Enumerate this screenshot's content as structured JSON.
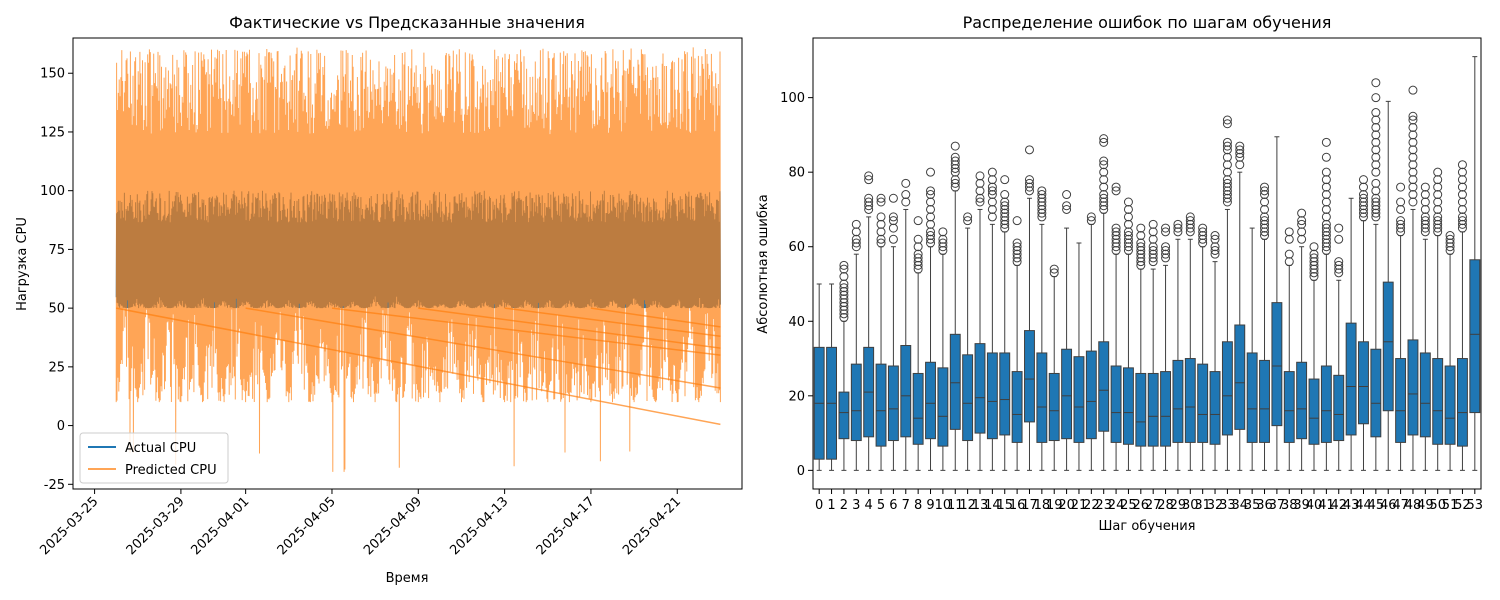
{
  "chart_data": [
    {
      "type": "line",
      "title": "Фактические vs Предсказанные значения",
      "xlabel": "Время",
      "ylabel": "Нагрузка CPU",
      "xlim": [
        "2025-03-24",
        "2025-04-24"
      ],
      "ylim": [
        -27,
        165
      ],
      "xticks": [
        "2025-03-25",
        "2025-03-29",
        "2025-04-01",
        "2025-04-05",
        "2025-04-09",
        "2025-04-13",
        "2025-04-17",
        "2025-04-21"
      ],
      "yticks": [
        -25,
        0,
        25,
        50,
        75,
        100,
        125,
        150
      ],
      "x_range": [
        "2025-03-26",
        "2025-04-23"
      ],
      "legend": "bottom-left",
      "series": [
        {
          "name": "Actual CPU",
          "color": "#1f77b4",
          "min": 50,
          "max": 100,
          "typical_low": 55,
          "typical_high": 100
        },
        {
          "name": "Predicted CPU",
          "color": "#ff7f0e",
          "opacity": 0.7,
          "min": -20,
          "max": 161,
          "typical_low": 10,
          "typical_high": 160
        }
      ]
    },
    {
      "type": "box",
      "title": "Распределение ошибок по шагам обучения",
      "xlabel": "Шаг обучения",
      "ylabel": "Абсолютная ошибка",
      "ylim": [
        -5,
        116
      ],
      "yticks": [
        0,
        20,
        40,
        60,
        80,
        100
      ],
      "color": "#1f77b4",
      "categories": [
        "0",
        "1",
        "2",
        "3",
        "4",
        "5",
        "6",
        "7",
        "8",
        "9",
        "10",
        "11",
        "12",
        "13",
        "14",
        "15",
        "16",
        "17",
        "18",
        "19",
        "20",
        "21",
        "22",
        "23",
        "24",
        "25",
        "26",
        "27",
        "28",
        "29",
        "30",
        "31",
        "32",
        "33",
        "34",
        "35",
        "36",
        "37",
        "38",
        "39",
        "40",
        "41",
        "42",
        "43",
        "44",
        "45",
        "46",
        "47",
        "48",
        "49",
        "50",
        "51",
        "52",
        "53"
      ],
      "boxes": [
        {
          "q1": 3,
          "median": 18,
          "q3": 33,
          "whisker_low": 0,
          "whisker_high": 50,
          "outliers": []
        },
        {
          "q1": 3,
          "median": 18,
          "q3": 33,
          "whisker_low": 0,
          "whisker_high": 50,
          "outliers": []
        },
        {
          "q1": 8.5,
          "median": 15.5,
          "q3": 21,
          "whisker_low": 0,
          "whisker_high": 40,
          "outliers": [
            41,
            42,
            43,
            44,
            45,
            46,
            47,
            48,
            49,
            50,
            52,
            54,
            55
          ]
        },
        {
          "q1": 8,
          "median": 16,
          "q3": 28.5,
          "whisker_low": 0,
          "whisker_high": 58,
          "outliers": [
            60,
            61,
            62,
            64,
            66
          ]
        },
        {
          "q1": 9,
          "median": 21,
          "q3": 33,
          "whisker_low": 0,
          "whisker_high": 68,
          "outliers": [
            70,
            71,
            72,
            73,
            78,
            79
          ]
        },
        {
          "q1": 6.5,
          "median": 16,
          "q3": 28.5,
          "whisker_low": 0,
          "whisker_high": 60,
          "outliers": [
            61,
            62,
            64,
            66,
            68,
            72,
            73
          ]
        },
        {
          "q1": 8,
          "median": 16.5,
          "q3": 28,
          "whisker_low": 0,
          "whisker_high": 60,
          "outliers": [
            62,
            65,
            67,
            68,
            73
          ]
        },
        {
          "q1": 9,
          "median": 20,
          "q3": 33.5,
          "whisker_low": 0,
          "whisker_high": 70,
          "outliers": [
            72,
            74,
            77
          ]
        },
        {
          "q1": 7,
          "median": 14,
          "q3": 26,
          "whisker_low": 0,
          "whisker_high": 53,
          "outliers": [
            54,
            55,
            56,
            57,
            58,
            60,
            62,
            67
          ]
        },
        {
          "q1": 8.5,
          "median": 18,
          "q3": 29,
          "whisker_low": 0,
          "whisker_high": 60,
          "outliers": [
            61,
            62,
            63,
            64,
            66,
            68,
            70,
            72,
            74,
            75,
            80
          ]
        },
        {
          "q1": 6.5,
          "median": 14.5,
          "q3": 27.5,
          "whisker_low": 0,
          "whisker_high": 58,
          "outliers": [
            59,
            60,
            61,
            62,
            64
          ]
        },
        {
          "q1": 11,
          "median": 23.5,
          "q3": 36.5,
          "whisker_low": 0,
          "whisker_high": 75,
          "outliers": [
            76,
            77,
            78,
            80,
            81,
            82,
            83,
            84,
            87
          ]
        },
        {
          "q1": 8,
          "median": 18,
          "q3": 31,
          "whisker_low": 0,
          "whisker_high": 65,
          "outliers": [
            67,
            68
          ]
        },
        {
          "q1": 10,
          "median": 19.5,
          "q3": 34,
          "whisker_low": 0,
          "whisker_high": 70,
          "outliers": [
            72,
            73,
            75,
            77,
            79
          ]
        },
        {
          "q1": 8.5,
          "median": 18.5,
          "q3": 31.5,
          "whisker_low": 0,
          "whisker_high": 66,
          "outliers": [
            68,
            70,
            72,
            74,
            75,
            76,
            78,
            80
          ]
        },
        {
          "q1": 9.5,
          "median": 19,
          "q3": 31.5,
          "whisker_low": 0,
          "whisker_high": 64,
          "outliers": [
            65,
            66,
            67,
            68,
            69,
            70,
            71,
            72,
            74,
            78
          ]
        },
        {
          "q1": 7.5,
          "median": 15,
          "q3": 26.5,
          "whisker_low": 0,
          "whisker_high": 55,
          "outliers": [
            56,
            57,
            58,
            59,
            60,
            61,
            67
          ]
        },
        {
          "q1": 13,
          "median": 24.5,
          "q3": 37.5,
          "whisker_low": 0,
          "whisker_high": 73,
          "outliers": [
            75,
            76,
            77,
            78,
            86
          ]
        },
        {
          "q1": 7.5,
          "median": 17,
          "q3": 31.5,
          "whisker_low": 0,
          "whisker_high": 66,
          "outliers": [
            68,
            69,
            70,
            71,
            72,
            73,
            74,
            75
          ]
        },
        {
          "q1": 8,
          "median": 16,
          "q3": 26,
          "whisker_low": 0,
          "whisker_high": 52,
          "outliers": [
            53,
            54
          ]
        },
        {
          "q1": 8.5,
          "median": 20,
          "q3": 32.5,
          "whisker_low": 0,
          "whisker_high": 65,
          "outliers": [
            70,
            71,
            74
          ]
        },
        {
          "q1": 7.5,
          "median": 17,
          "q3": 30.5,
          "whisker_low": 0,
          "whisker_high": 61,
          "outliers": []
        },
        {
          "q1": 8.5,
          "median": 18.5,
          "q3": 32,
          "whisker_low": 0,
          "whisker_high": 66,
          "outliers": [
            67,
            68
          ]
        },
        {
          "q1": 10.5,
          "median": 21.5,
          "q3": 34.5,
          "whisker_low": 0,
          "whisker_high": 69,
          "outliers": [
            70,
            71,
            72,
            73,
            74,
            76,
            78,
            80,
            82,
            83,
            88,
            89
          ]
        },
        {
          "q1": 7.5,
          "median": 15.5,
          "q3": 28,
          "whisker_low": 0,
          "whisker_high": 58,
          "outliers": [
            59,
            60,
            61,
            62,
            63,
            64,
            65,
            75,
            76
          ]
        },
        {
          "q1": 7,
          "median": 15.5,
          "q3": 27.5,
          "whisker_low": 0,
          "whisker_high": 58,
          "outliers": [
            59,
            60,
            61,
            62,
            63,
            64,
            66,
            68,
            70,
            72
          ]
        },
        {
          "q1": 6.5,
          "median": 13,
          "q3": 26,
          "whisker_low": 0,
          "whisker_high": 54,
          "outliers": [
            55,
            56,
            57,
            58,
            59,
            60,
            61,
            63,
            65
          ]
        },
        {
          "q1": 6.5,
          "median": 14.5,
          "q3": 26,
          "whisker_low": 0,
          "whisker_high": 54,
          "outliers": [
            56,
            57,
            58,
            59,
            60,
            62,
            64,
            66
          ]
        },
        {
          "q1": 6.5,
          "median": 14.5,
          "q3": 26.5,
          "whisker_low": 0,
          "whisker_high": 55,
          "outliers": [
            57,
            58,
            59,
            60,
            64,
            65
          ]
        },
        {
          "q1": 7.5,
          "median": 16.5,
          "q3": 29.5,
          "whisker_low": 0,
          "whisker_high": 62,
          "outliers": [
            64,
            65,
            66
          ]
        },
        {
          "q1": 7.5,
          "median": 17,
          "q3": 30,
          "whisker_low": 0,
          "whisker_high": 62,
          "outliers": [
            64,
            65,
            66,
            67,
            68
          ]
        },
        {
          "q1": 7.5,
          "median": 15,
          "q3": 28.5,
          "whisker_low": 0,
          "whisker_high": 60,
          "outliers": [
            61,
            62,
            63,
            64,
            65
          ]
        },
        {
          "q1": 7,
          "median": 15,
          "q3": 26.5,
          "whisker_low": 0,
          "whisker_high": 56,
          "outliers": [
            58,
            59,
            60,
            62,
            63
          ]
        },
        {
          "q1": 9.5,
          "median": 20,
          "q3": 34.5,
          "whisker_low": 0,
          "whisker_high": 70,
          "outliers": [
            72,
            73,
            74,
            75,
            76,
            77,
            78,
            80,
            82,
            84,
            86,
            87,
            88,
            93,
            94
          ]
        },
        {
          "q1": 11,
          "median": 23.5,
          "q3": 39,
          "whisker_low": 0,
          "whisker_high": 80,
          "outliers": [
            82,
            84,
            85,
            86,
            87
          ]
        },
        {
          "q1": 7.5,
          "median": 16.5,
          "q3": 31.5,
          "whisker_low": 0,
          "whisker_high": 65,
          "outliers": []
        },
        {
          "q1": 7.5,
          "median": 16.5,
          "q3": 29.5,
          "whisker_low": 0,
          "whisker_high": 62,
          "outliers": [
            63,
            64,
            65,
            66,
            67,
            68,
            70,
            72,
            74,
            75,
            76
          ]
        },
        {
          "q1": 12,
          "median": 28,
          "q3": 45,
          "whisker_low": 0,
          "whisker_high": 89.5,
          "outliers": []
        },
        {
          "q1": 7.5,
          "median": 16,
          "q3": 26.5,
          "whisker_low": 0,
          "whisker_high": 55,
          "outliers": [
            56,
            58,
            62,
            64
          ]
        },
        {
          "q1": 8.5,
          "median": 16.5,
          "q3": 29,
          "whisker_low": 0,
          "whisker_high": 60,
          "outliers": [
            62,
            64,
            66,
            67,
            69
          ]
        },
        {
          "q1": 7,
          "median": 14,
          "q3": 24.5,
          "whisker_low": 0,
          "whisker_high": 51,
          "outliers": [
            52,
            53,
            54,
            55,
            56,
            57,
            58,
            60
          ]
        },
        {
          "q1": 7.5,
          "median": 16,
          "q3": 28,
          "whisker_low": 0,
          "whisker_high": 58,
          "outliers": [
            59,
            60,
            61,
            62,
            63,
            64,
            65,
            66,
            68,
            70,
            72,
            74,
            76,
            78,
            80,
            84,
            88
          ]
        },
        {
          "q1": 8,
          "median": 15,
          "q3": 25.5,
          "whisker_low": 0,
          "whisker_high": 51,
          "outliers": [
            53,
            54,
            55,
            56,
            62,
            65
          ]
        },
        {
          "q1": 9.5,
          "median": 22.5,
          "q3": 39.5,
          "whisker_low": 0,
          "whisker_high": 73,
          "outliers": []
        },
        {
          "q1": 12.5,
          "median": 22.5,
          "q3": 34.5,
          "whisker_low": 0,
          "whisker_high": 67,
          "outliers": [
            68,
            69,
            70,
            71,
            72,
            73,
            74,
            76,
            78
          ]
        },
        {
          "q1": 9,
          "median": 18,
          "q3": 32.5,
          "whisker_low": 0,
          "whisker_high": 66,
          "outliers": [
            68,
            69,
            70,
            71,
            72,
            73,
            75,
            77,
            80,
            82,
            84,
            86,
            88,
            90,
            92,
            94,
            96,
            100,
            104
          ]
        },
        {
          "q1": 16,
          "median": 34.5,
          "q3": 50.5,
          "whisker_low": 0,
          "whisker_high": 99,
          "outliers": []
        },
        {
          "q1": 7.5,
          "median": 16,
          "q3": 30,
          "whisker_low": 0,
          "whisker_high": 63,
          "outliers": [
            64,
            65,
            66,
            67,
            70,
            72,
            76
          ]
        },
        {
          "q1": 9.5,
          "median": 20.5,
          "q3": 35,
          "whisker_low": 0,
          "whisker_high": 70,
          "outliers": [
            72,
            74,
            76,
            78,
            80,
            82,
            84,
            86,
            88,
            90,
            92,
            94,
            95,
            102
          ]
        },
        {
          "q1": 9,
          "median": 18,
          "q3": 31.5,
          "whisker_low": 0,
          "whisker_high": 62,
          "outliers": [
            64,
            65,
            66,
            67,
            68,
            70,
            72,
            74,
            76
          ]
        },
        {
          "q1": 7,
          "median": 16,
          "q3": 30,
          "whisker_low": 0,
          "whisker_high": 63,
          "outliers": [
            64,
            65,
            66,
            67,
            68,
            70,
            72,
            74,
            76,
            78,
            80
          ]
        },
        {
          "q1": 7,
          "median": 14,
          "q3": 28,
          "whisker_low": 0,
          "whisker_high": 58,
          "outliers": [
            59,
            60,
            61,
            62,
            63
          ]
        },
        {
          "q1": 6.5,
          "median": 15.5,
          "q3": 30,
          "whisker_low": 0,
          "whisker_high": 64,
          "outliers": [
            65,
            66,
            67,
            68,
            70,
            72,
            74,
            76,
            78,
            80,
            82
          ]
        },
        {
          "q1": 15.5,
          "median": 36.5,
          "q3": 56.5,
          "whisker_low": 0,
          "whisker_high": 111,
          "outliers": []
        }
      ]
    }
  ]
}
